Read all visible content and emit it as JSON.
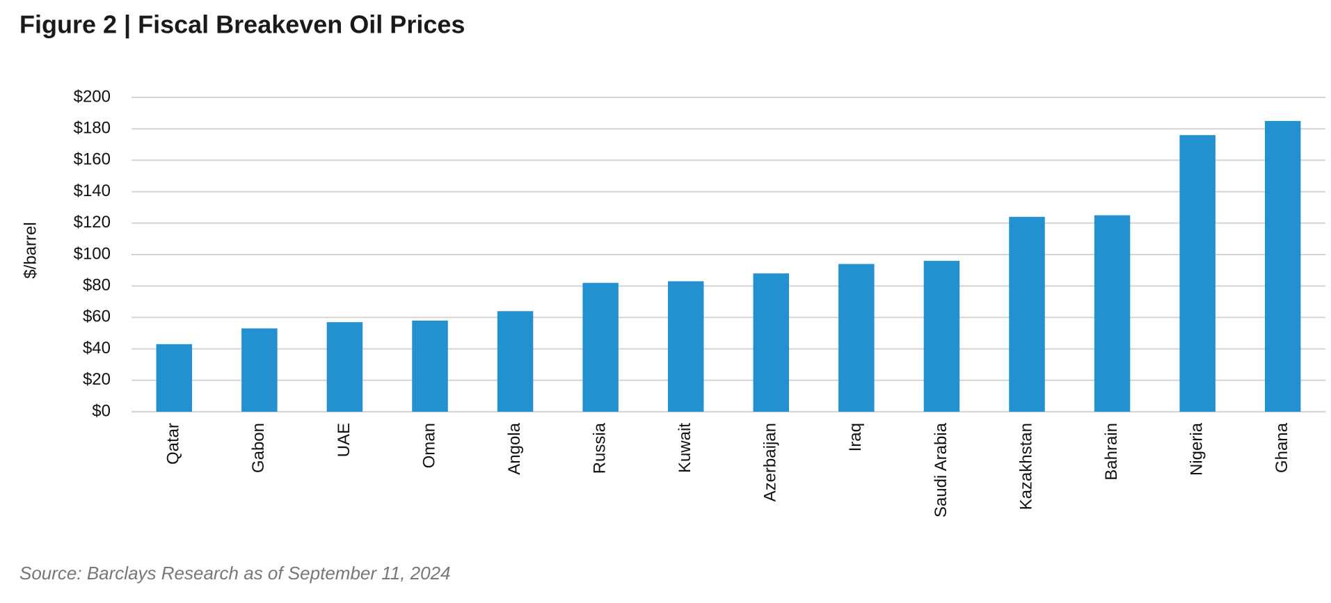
{
  "chart_data": {
    "type": "bar",
    "title": "Figure 2 | Fiscal Breakeven Oil Prices",
    "y_label": "$/barrel",
    "source": "Source: Barclays Research as of September 11, 2024",
    "categories": [
      "Qatar",
      "Gabon",
      "UAE",
      "Oman",
      "Angola",
      "Russia",
      "Kuwait",
      "Azerbaijan",
      "Iraq",
      "Saudi Arabia",
      "Kazakhstan",
      "Bahrain",
      "Nigeria",
      "Ghana"
    ],
    "values": [
      43,
      53,
      57,
      58,
      64,
      82,
      83,
      88,
      94,
      96,
      124,
      125,
      176,
      185
    ],
    "color": "#2390d0",
    "ylim": [
      0,
      200
    ],
    "yticks": [
      {
        "value": 0,
        "label": "$0"
      },
      {
        "value": 20,
        "label": "$20"
      },
      {
        "value": 40,
        "label": "$40"
      },
      {
        "value": 60,
        "label": "$60"
      },
      {
        "value": 80,
        "label": "$80"
      },
      {
        "value": 100,
        "label": "$100"
      },
      {
        "value": 120,
        "label": "$120"
      },
      {
        "value": 140,
        "label": "$140"
      },
      {
        "value": 160,
        "label": "$160"
      },
      {
        "value": 180,
        "label": "$180"
      },
      {
        "value": 200,
        "label": "$200"
      }
    ],
    "grid": true
  }
}
